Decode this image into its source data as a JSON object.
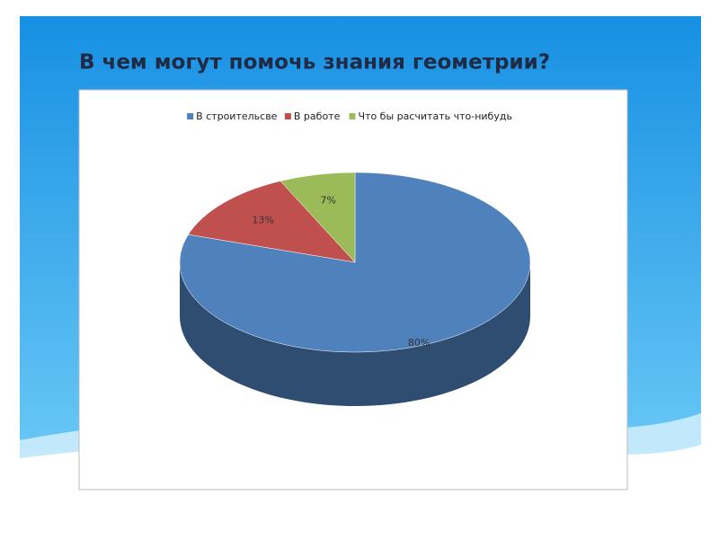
{
  "chart_data": {
    "type": "pie",
    "title": "В чем могут помочь знания геометрии?",
    "categories": [
      "В строительсве",
      "В работе",
      "Что бы расчитать что-нибудь"
    ],
    "values": [
      80,
      13,
      7
    ],
    "value_labels": [
      "80%",
      "13%",
      "7%"
    ],
    "colors": [
      "#4f81bd",
      "#c0504d",
      "#9bbb59"
    ],
    "legend": "top"
  }
}
